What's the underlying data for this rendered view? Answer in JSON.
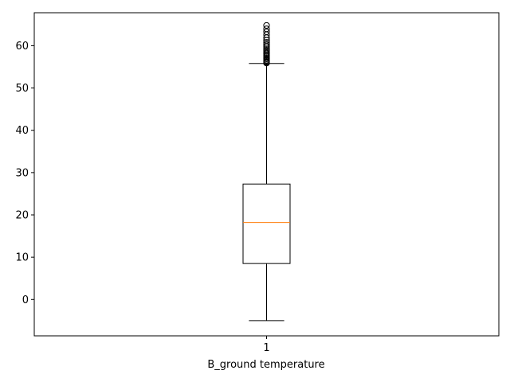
{
  "chart_data": {
    "type": "box",
    "title": "",
    "xlabel": "B_ground temperature",
    "ylabel": "",
    "categories": [
      "1"
    ],
    "ylim": [
      -8.6,
      67.8
    ],
    "yticks": [
      0,
      10,
      20,
      30,
      40,
      50,
      60
    ],
    "boxes": [
      {
        "category": "1",
        "whisker_low": -5.0,
        "q1": 8.5,
        "median": 18.2,
        "q3": 27.3,
        "whisker_high": 55.8,
        "outliers": [
          55.9,
          56.1,
          56.3,
          56.6,
          56.9,
          57.2,
          57.5,
          57.8,
          58.1,
          58.4,
          58.8,
          59.1,
          59.5,
          59.9,
          60.3,
          60.8,
          61.3,
          61.9,
          62.6,
          63.3,
          64.0,
          64.8
        ]
      }
    ],
    "colors": {
      "box": "#000000",
      "median": "#ff7f0e",
      "outlier": "#000000"
    },
    "grid": false
  }
}
